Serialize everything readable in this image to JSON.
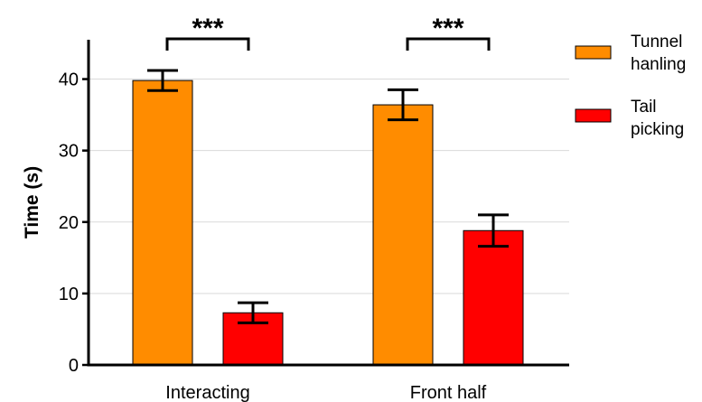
{
  "chart_data": {
    "type": "bar",
    "title": "",
    "xlabel": "",
    "ylabel": "Time (s)",
    "ylim": [
      0,
      45
    ],
    "yticks": [
      0,
      10,
      20,
      30,
      40
    ],
    "grid": true,
    "legend_position": "right",
    "categories": [
      "Interacting",
      "Front half"
    ],
    "series": [
      {
        "name": "Tunnel hanling",
        "legend_lines": [
          "Tunnel",
          "hanling"
        ],
        "color": "#FF8C00",
        "values": [
          39.8,
          36.4
        ],
        "error": [
          1.4,
          2.1
        ]
      },
      {
        "name": "Tail picking",
        "legend_lines": [
          "Tail",
          "picking"
        ],
        "color": "#FF0000",
        "values": [
          7.3,
          18.8
        ],
        "error": [
          1.4,
          2.2
        ]
      }
    ],
    "significance": [
      {
        "category_index": 0,
        "label": "***"
      },
      {
        "category_index": 1,
        "label": "***"
      }
    ]
  }
}
